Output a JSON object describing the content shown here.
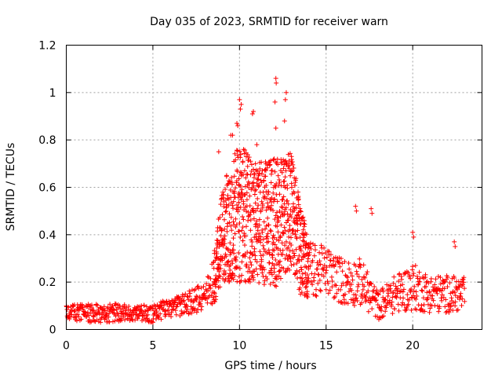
{
  "chart_data": {
    "type": "scatter",
    "title": "Day 035 of 2023, SRMTID for receiver warn",
    "xlabel": "GPS time / hours",
    "ylabel": "SRMTID / TECUs",
    "xlim": [
      0,
      24
    ],
    "ylim": [
      0,
      1.2
    ],
    "xticks": [
      0,
      5,
      10,
      15,
      20
    ],
    "xtick_labels": [
      "0",
      "5",
      "10",
      "15",
      "20"
    ],
    "yticks": [
      0,
      0.2,
      0.4,
      0.6,
      0.8,
      1.0,
      1.2
    ],
    "ytick_labels": [
      "0",
      "0.2",
      "0.4",
      "0.6",
      "0.8",
      "1",
      "1.2"
    ],
    "grid": true,
    "marker": "+",
    "color": "#ff0000",
    "series": [
      {
        "name": "SRMTID",
        "x_range": [
          0,
          23
        ],
        "sample_step_hours": 0.02,
        "profile": [
          {
            "x": 0,
            "y": 0.07,
            "spread": 0.03
          },
          {
            "x": 1,
            "y": 0.07,
            "spread": 0.04
          },
          {
            "x": 2,
            "y": 0.07,
            "spread": 0.04
          },
          {
            "x": 3,
            "y": 0.07,
            "spread": 0.04
          },
          {
            "x": 4,
            "y": 0.07,
            "spread": 0.03
          },
          {
            "x": 5,
            "y": 0.07,
            "spread": 0.04
          },
          {
            "x": 6,
            "y": 0.09,
            "spread": 0.04
          },
          {
            "x": 7,
            "y": 0.11,
            "spread": 0.05
          },
          {
            "x": 8,
            "y": 0.14,
            "spread": 0.06
          },
          {
            "x": 8.5,
            "y": 0.2,
            "spread": 0.1
          },
          {
            "x": 9,
            "y": 0.4,
            "spread": 0.2
          },
          {
            "x": 10,
            "y": 0.5,
            "spread": 0.3
          },
          {
            "x": 11,
            "y": 0.45,
            "spread": 0.25
          },
          {
            "x": 12,
            "y": 0.45,
            "spread": 0.28
          },
          {
            "x": 13,
            "y": 0.5,
            "spread": 0.25
          },
          {
            "x": 13.5,
            "y": 0.35,
            "spread": 0.2
          },
          {
            "x": 14,
            "y": 0.25,
            "spread": 0.12
          },
          {
            "x": 15,
            "y": 0.25,
            "spread": 0.1
          },
          {
            "x": 16,
            "y": 0.2,
            "spread": 0.1
          },
          {
            "x": 17,
            "y": 0.2,
            "spread": 0.1
          },
          {
            "x": 18,
            "y": 0.1,
            "spread": 0.06
          },
          {
            "x": 19,
            "y": 0.15,
            "spread": 0.08
          },
          {
            "x": 20,
            "y": 0.18,
            "spread": 0.1
          },
          {
            "x": 21,
            "y": 0.15,
            "spread": 0.08
          },
          {
            "x": 22,
            "y": 0.15,
            "spread": 0.08
          },
          {
            "x": 23,
            "y": 0.15,
            "spread": 0.07
          }
        ],
        "highlights": [
          {
            "x": 10.0,
            "y": 0.97
          },
          {
            "x": 10.1,
            "y": 0.95
          },
          {
            "x": 10.05,
            "y": 0.93
          },
          {
            "x": 9.85,
            "y": 0.87
          },
          {
            "x": 9.9,
            "y": 0.86
          },
          {
            "x": 10.8,
            "y": 0.92
          },
          {
            "x": 10.75,
            "y": 0.91
          },
          {
            "x": 12.1,
            "y": 1.06
          },
          {
            "x": 12.12,
            "y": 1.04
          },
          {
            "x": 12.05,
            "y": 0.96
          },
          {
            "x": 12.7,
            "y": 1.0
          },
          {
            "x": 12.65,
            "y": 0.97
          },
          {
            "x": 12.6,
            "y": 0.88
          },
          {
            "x": 12.1,
            "y": 0.85
          },
          {
            "x": 9.5,
            "y": 0.82
          },
          {
            "x": 9.6,
            "y": 0.82
          },
          {
            "x": 8.8,
            "y": 0.75
          },
          {
            "x": 11.0,
            "y": 0.78
          },
          {
            "x": 12.0,
            "y": 0.72
          },
          {
            "x": 13.0,
            "y": 0.73
          },
          {
            "x": 16.7,
            "y": 0.52
          },
          {
            "x": 16.75,
            "y": 0.5
          },
          {
            "x": 17.6,
            "y": 0.51
          },
          {
            "x": 17.65,
            "y": 0.49
          },
          {
            "x": 20.0,
            "y": 0.41
          },
          {
            "x": 20.05,
            "y": 0.39
          },
          {
            "x": 22.4,
            "y": 0.37
          },
          {
            "x": 22.45,
            "y": 0.35
          }
        ]
      }
    ]
  }
}
